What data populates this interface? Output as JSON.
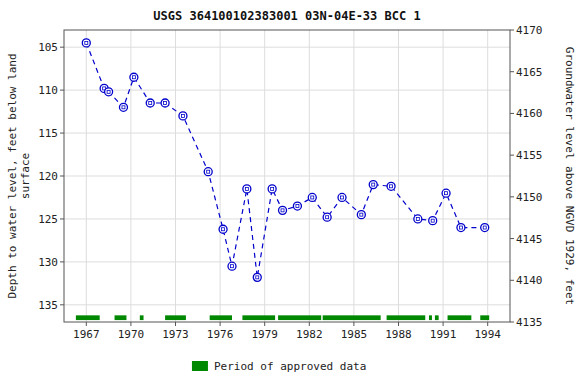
{
  "chart_data": {
    "type": "line",
    "title": "USGS 364100102383001 03N-04E-33 BCC 1",
    "ylabel": "Depth to water level, feet below land\nsurface",
    "y2label": "Groundwater level above NGVD 1929, feet",
    "x": [
      1967.0,
      1968.2,
      1968.5,
      1969.5,
      1970.2,
      1971.3,
      1972.3,
      1973.5,
      1975.2,
      1976.2,
      1976.8,
      1977.8,
      1978.5,
      1979.5,
      1980.2,
      1981.2,
      1982.2,
      1983.2,
      1984.2,
      1985.5,
      1986.3,
      1987.5,
      1989.3,
      1990.3,
      1991.2,
      1992.2,
      1993.8
    ],
    "series": [
      {
        "color": "#0000cc",
        "line_style": "dashed",
        "marker": "circle",
        "values": [
          104.5,
          109.8,
          110.2,
          112.0,
          108.5,
          111.5,
          111.5,
          113.0,
          119.5,
          126.2,
          130.5,
          121.5,
          131.8,
          121.5,
          124.0,
          123.5,
          122.5,
          124.8,
          122.5,
          124.5,
          121.0,
          121.2,
          125.0,
          125.2,
          122.0,
          126.0,
          126.0
        ]
      },
      {
        "name": "Period of approved data",
        "type": "range_bar",
        "color": "#008800",
        "y": 136.5,
        "height": 0.55,
        "ranges": [
          [
            1966.3,
            1967.9
          ],
          [
            1968.9,
            1969.7
          ],
          [
            1970.6,
            1970.85
          ],
          [
            1972.3,
            1973.7
          ],
          [
            1975.3,
            1976.8
          ],
          [
            1977.5,
            1979.7
          ],
          [
            1979.9,
            1982.8
          ],
          [
            1982.9,
            1986.8
          ],
          [
            1987.2,
            1989.8
          ],
          [
            1990.05,
            1990.25
          ],
          [
            1990.45,
            1990.7
          ],
          [
            1991.3,
            1992.9
          ],
          [
            1993.5,
            1994.1
          ]
        ]
      }
    ],
    "xlim": [
      1965.5,
      1995.5
    ],
    "xticks": [
      1967,
      1970,
      1973,
      1976,
      1979,
      1982,
      1985,
      1988,
      1991,
      1994
    ],
    "ylim": [
      137,
      103
    ],
    "yticks": [
      105,
      110,
      115,
      120,
      125,
      130,
      135
    ],
    "y2lim": [
      4135,
      4170
    ],
    "y2ticks": [
      4135,
      4140,
      4145,
      4150,
      4155,
      4160,
      4165,
      4170
    ],
    "grid": true,
    "legend": "bottom"
  }
}
